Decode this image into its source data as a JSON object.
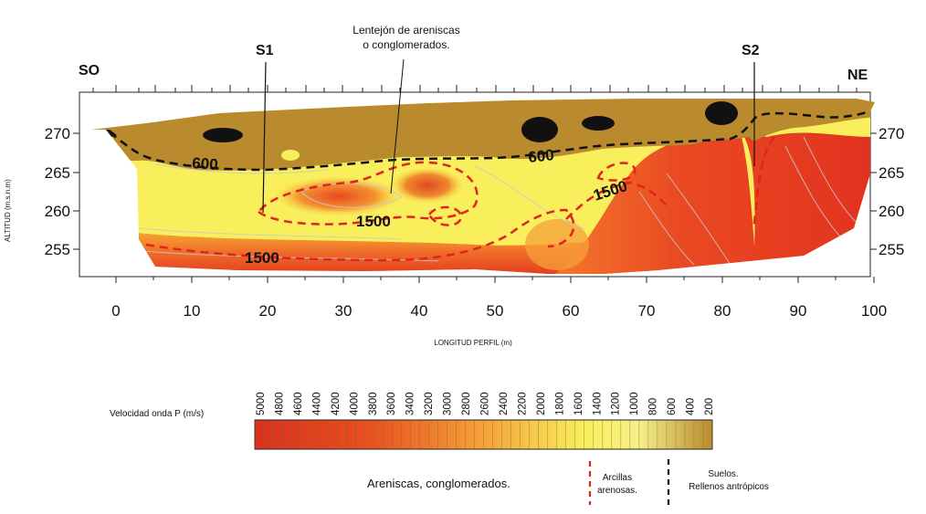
{
  "section": {
    "orientation": {
      "left": "SO",
      "right": "NE"
    },
    "probes": [
      "S1",
      "S2"
    ],
    "annotation": {
      "line1": "Lentejón de areniscas",
      "line2": "o conglomerados."
    },
    "contours": {
      "upper_left": "600",
      "upper_mid": "600",
      "mid_left": "1500",
      "mid_right": "1500",
      "bottom": "1500"
    },
    "y_axis": {
      "label": "ALTITUD (m.s.n.m)",
      "ticks": [
        "270",
        "265",
        "260",
        "255"
      ]
    },
    "x_axis": {
      "label": "LONGITUD PERFIL (m)",
      "ticks": [
        "0",
        "10",
        "20",
        "30",
        "40",
        "50",
        "60",
        "70",
        "80",
        "90",
        "100"
      ]
    }
  },
  "legend": {
    "title": "Velocidad onda P (m/s)",
    "ticks": [
      "5000",
      "4800",
      "4600",
      "4400",
      "4200",
      "4000",
      "3800",
      "3600",
      "3400",
      "3200",
      "3000",
      "2800",
      "2600",
      "2400",
      "2200",
      "2000",
      "1800",
      "1600",
      "1400",
      "1200",
      "1000",
      "800",
      "600",
      "400",
      "200"
    ],
    "units": {
      "rock": "Areniscas, conglomerados.",
      "clay_line1": "Arcillas",
      "clay_line2": "arenosas.",
      "soil_line1": "Suelos.",
      "soil_line2": "Rellenos antrópicos"
    }
  },
  "colors": {
    "high_velocity": "#e03222",
    "mid_velocity": "#f7a030",
    "low_velocity": "#f9ef5c",
    "soil": "#b98a2e",
    "clay_boundary": "#e0241c",
    "soil_boundary": "#111111"
  }
}
